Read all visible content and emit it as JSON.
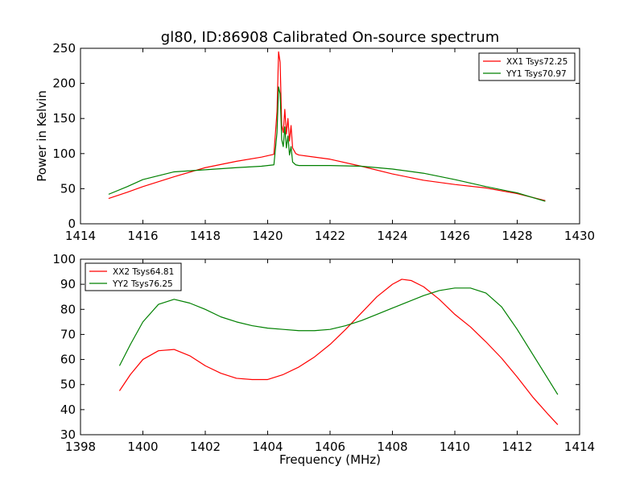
{
  "title": "gl80, ID:86908 Calibrated On-source spectrum",
  "ylabel": "Power in Kelvin",
  "xlabel": "Frequency (MHz)",
  "colors": {
    "red": "#ff0000",
    "green": "#008000"
  },
  "chart_data": [
    {
      "type": "line",
      "title": "gl80, ID:86908 Calibrated On-source spectrum",
      "ylabel": "Power in Kelvin",
      "xlabel": "",
      "xlim": [
        1414,
        1430
      ],
      "ylim": [
        0,
        250
      ],
      "xticks": [
        "1414",
        "1416",
        "1418",
        "1420",
        "1422",
        "1424",
        "1426",
        "1428",
        "1430"
      ],
      "yticks": [
        "0",
        "50",
        "100",
        "150",
        "200",
        "250"
      ],
      "legend": "top-right",
      "grid": false,
      "series": [
        {
          "name": "XX1 Tsys72.25",
          "color": "#ff0000",
          "x": [
            1414.9,
            1415.5,
            1416.0,
            1417.0,
            1418.0,
            1419.0,
            1419.8,
            1420.2,
            1420.3,
            1420.35,
            1420.4,
            1420.45,
            1420.5,
            1420.55,
            1420.6,
            1420.65,
            1420.7,
            1420.75,
            1420.8,
            1420.9,
            1421.0,
            1422.0,
            1423.0,
            1424.0,
            1425.0,
            1426.0,
            1427.0,
            1428.0,
            1428.9
          ],
          "y": [
            36,
            45,
            53,
            67,
            80,
            89,
            95,
            99,
            160,
            245,
            230,
            140,
            130,
            163,
            128,
            150,
            118,
            140,
            108,
            100,
            98,
            92,
            82,
            71,
            62,
            56,
            51,
            43,
            33
          ]
        },
        {
          "name": "YY1 Tsys70.97",
          "color": "#008000",
          "x": [
            1414.9,
            1415.5,
            1416.0,
            1417.0,
            1418.0,
            1419.0,
            1419.8,
            1420.2,
            1420.3,
            1420.35,
            1420.4,
            1420.45,
            1420.5,
            1420.55,
            1420.6,
            1420.65,
            1420.7,
            1420.75,
            1420.8,
            1420.9,
            1421.0,
            1422.0,
            1423.0,
            1424.0,
            1425.0,
            1426.0,
            1427.0,
            1428.0,
            1428.9
          ],
          "y": [
            42,
            53,
            63,
            74,
            77,
            80,
            82,
            84,
            130,
            195,
            185,
            120,
            110,
            138,
            108,
            125,
            98,
            110,
            88,
            84,
            83,
            83,
            82,
            78,
            72,
            63,
            53,
            44,
            32
          ]
        }
      ]
    },
    {
      "type": "line",
      "title": "",
      "xlabel": "Frequency (MHz)",
      "ylabel": "",
      "xlim": [
        1398,
        1414
      ],
      "ylim": [
        30,
        100
      ],
      "xticks": [
        "1398",
        "1400",
        "1402",
        "1404",
        "1406",
        "1408",
        "1410",
        "1412",
        "1414"
      ],
      "yticks": [
        "30",
        "40",
        "50",
        "60",
        "70",
        "80",
        "90",
        "100"
      ],
      "legend": "top-left",
      "grid": false,
      "series": [
        {
          "name": "XX2 Tsys64.81",
          "color": "#ff0000",
          "x": [
            1399.25,
            1399.6,
            1400.0,
            1400.5,
            1401.0,
            1401.5,
            1402.0,
            1402.5,
            1403.0,
            1403.5,
            1404.0,
            1404.5,
            1405.0,
            1405.5,
            1406.0,
            1406.5,
            1407.0,
            1407.5,
            1408.0,
            1408.3,
            1408.6,
            1409.0,
            1409.5,
            1410.0,
            1410.5,
            1411.0,
            1411.5,
            1412.0,
            1412.5,
            1413.0,
            1413.3
          ],
          "y": [
            47.5,
            54,
            60,
            63.5,
            64,
            61.5,
            57.5,
            54.5,
            52.5,
            52,
            52,
            54,
            57,
            61,
            66,
            72,
            78.5,
            85,
            90,
            92,
            91.5,
            89,
            84,
            78,
            73,
            67,
            60.5,
            53,
            45,
            38,
            34
          ]
        },
        {
          "name": "YY2 Tsys76.25",
          "color": "#008000",
          "x": [
            1399.25,
            1399.6,
            1400.0,
            1400.5,
            1401.0,
            1401.5,
            1402.0,
            1402.5,
            1403.0,
            1403.5,
            1404.0,
            1404.5,
            1405.0,
            1405.5,
            1406.0,
            1406.5,
            1407.0,
            1407.5,
            1408.0,
            1408.5,
            1409.0,
            1409.5,
            1410.0,
            1410.5,
            1411.0,
            1411.5,
            1412.0,
            1412.5,
            1413.0,
            1413.3
          ],
          "y": [
            57.5,
            66,
            75,
            82,
            84,
            82.5,
            80,
            77,
            75,
            73.5,
            72.5,
            72,
            71.5,
            71.5,
            72,
            73.5,
            75.5,
            78,
            80.5,
            83,
            85.5,
            87.5,
            88.5,
            88.5,
            86.5,
            81,
            72,
            62,
            52,
            46
          ]
        }
      ]
    }
  ]
}
